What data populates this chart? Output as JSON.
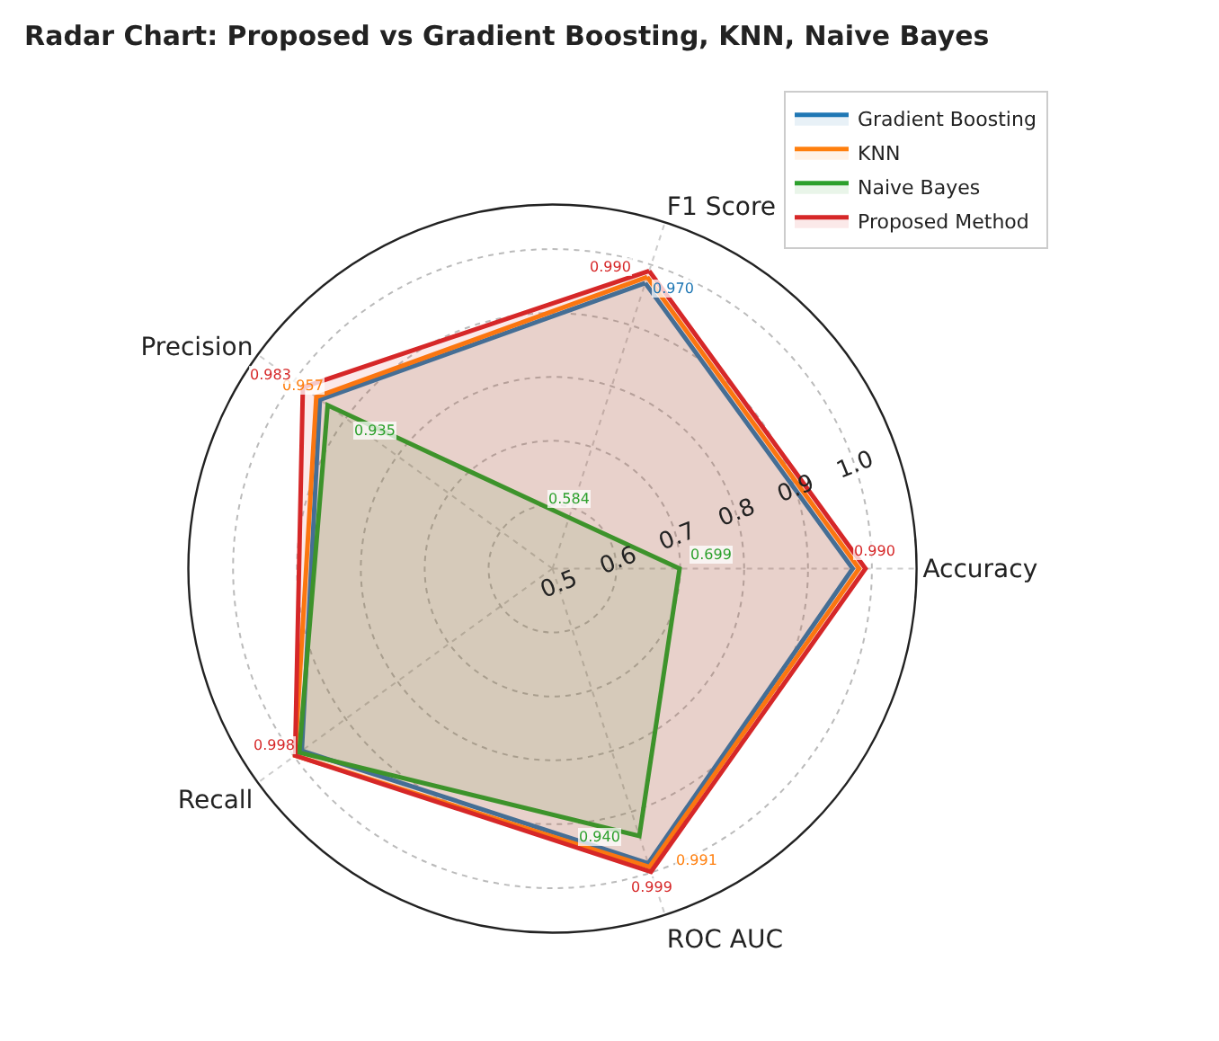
{
  "chart_data": {
    "type": "radar",
    "title": "Radar Chart: Proposed vs Gradient Boosting, KNN, Naive Bayes",
    "categories": [
      "F1 Score",
      "Accuracy",
      "ROC AUC",
      "Recall",
      "Precision"
    ],
    "series": [
      {
        "name": "Gradient Boosting",
        "color": "#1f77b4",
        "values": [
          0.97,
          0.97,
          0.985,
          0.985,
          0.95
        ],
        "value_labels": [
          "0.970",
          null,
          null,
          null,
          null
        ]
      },
      {
        "name": "KNN",
        "color": "#ff7f0e",
        "values": [
          0.98,
          0.98,
          0.991,
          0.998,
          0.957
        ],
        "value_labels": [
          null,
          null,
          "0.991",
          null,
          "0.957"
        ]
      },
      {
        "name": "Naive Bayes",
        "color": "#2ca02c",
        "values": [
          0.584,
          0.699,
          0.94,
          0.99,
          0.935
        ],
        "value_labels": [
          "0.584",
          "0.699",
          "0.940",
          null,
          "0.935"
        ]
      },
      {
        "name": "Proposed Method",
        "color": "#d62728",
        "values": [
          0.99,
          0.99,
          0.999,
          0.998,
          0.983
        ],
        "value_labels": [
          "0.990",
          "0.990",
          "0.999",
          "0.998",
          "0.983"
        ]
      }
    ],
    "ylim": [
      0.5,
      1.07
    ],
    "yticks": [
      0.5,
      0.6,
      0.7,
      0.8,
      0.9,
      {
        "value": 1.0,
        "label": "1.0"
      }
    ],
    "grid": true,
    "legend": "top right"
  }
}
